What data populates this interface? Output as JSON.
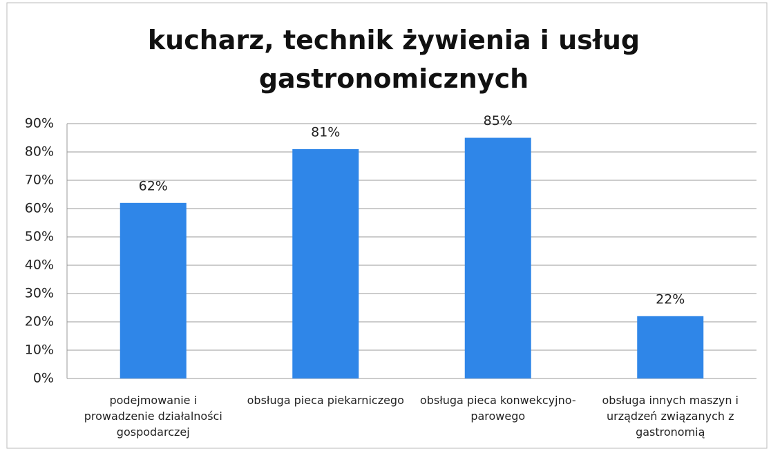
{
  "chart_data": {
    "type": "bar",
    "title": "kucharz, technik żywienia i usług gastronomicznych",
    "categories": [
      "podejmowanie i prowadzenie działalności gospodarczej",
      "obsługa pieca piekarniczego",
      "obsługa pieca konwekcyjno-parowego",
      "obsługa innych maszyn i urządzeń związanych z gastronomią"
    ],
    "values": [
      62,
      81,
      85,
      22
    ],
    "value_labels": [
      "62%",
      "81%",
      "85%",
      "22%"
    ],
    "color": "#2f86e8",
    "ylim": [
      0,
      90
    ],
    "yticks": [
      {
        "value": 0,
        "label": "0%"
      },
      {
        "value": 10,
        "label": "10%"
      },
      {
        "value": 20,
        "label": "20%"
      },
      {
        "value": 30,
        "label": "30%"
      },
      {
        "value": 40,
        "label": "40%"
      },
      {
        "value": 50,
        "label": "50%"
      },
      {
        "value": 60,
        "label": "60%"
      },
      {
        "value": 70,
        "label": "70%"
      },
      {
        "value": 80,
        "label": "80%"
      },
      {
        "value": 90,
        "label": "90%"
      }
    ],
    "grid": true
  }
}
